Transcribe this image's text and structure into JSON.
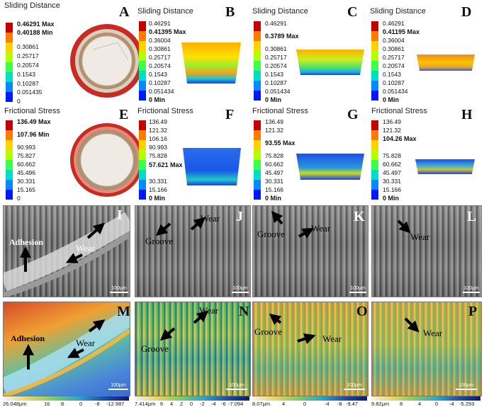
{
  "row1": {
    "title": "Sliding Distance",
    "panels": [
      {
        "letter": "A",
        "ticks": [
          "0.30861",
          "0.25717",
          "0.20574",
          "0.1543",
          "0.10287",
          "0.051435",
          "0"
        ],
        "max": "0.46291 Max",
        "min": "0.40188 Min"
      },
      {
        "letter": "B",
        "ticks": [
          "0.46291",
          "0.36004",
          "0.30861",
          "0.25717",
          "0.20574",
          "0.1543",
          "0.10287",
          "0.051434"
        ],
        "max": "0.41395 Max",
        "min": "0 Min"
      },
      {
        "letter": "C",
        "ticks": [
          "0.46291",
          "0.30861",
          "0.25717",
          "0.20574",
          "0.1543",
          "0.10287",
          "0.051434"
        ],
        "max": "0.3789 Max",
        "min": "0 Min"
      },
      {
        "letter": "D",
        "ticks": [
          "0.46291",
          "0.36004",
          "0.30861",
          "0.25717",
          "0.20574",
          "0.1543",
          "0.10287",
          "0.051434"
        ],
        "max": "0.41195 Max",
        "min": "0 Min"
      }
    ]
  },
  "row2": {
    "title": "Frictional Stress",
    "panels": [
      {
        "letter": "E",
        "ticks": [
          "90.993",
          "75.827",
          "60.662",
          "45.496",
          "30.331",
          "15.165",
          "0"
        ],
        "max": "136.49 Max",
        "min": "107.96 Min"
      },
      {
        "letter": "F",
        "ticks": [
          "136.49",
          "121.32",
          "106.16",
          "90.993",
          "75.828",
          "30.331",
          "15.166"
        ],
        "max": "57.621 Max",
        "min": "0 Min"
      },
      {
        "letter": "G",
        "ticks": [
          "136.49",
          "121.32",
          "75.828",
          "60.662",
          "45.497",
          "30.331",
          "15.166"
        ],
        "max": "93.55 Max",
        "min": "0 Min"
      },
      {
        "letter": "H",
        "ticks": [
          "136.49",
          "121.32",
          "75.828",
          "60.662",
          "45.497",
          "30.331",
          "15.166"
        ],
        "max": "104.26 Max",
        "min": "0 Min"
      }
    ]
  },
  "row3": {
    "panels": [
      {
        "letter": "I",
        "labels": [
          "Adhesion",
          "Wear"
        ]
      },
      {
        "letter": "J",
        "labels": [
          "Groove",
          "Wear"
        ]
      },
      {
        "letter": "K",
        "labels": [
          "Groove",
          "Wear"
        ]
      },
      {
        "letter": "L",
        "labels": [
          "Wear"
        ]
      }
    ],
    "scale": "100μm"
  },
  "row4": {
    "panels": [
      {
        "letter": "M",
        "labels": [
          "Adhesion",
          "Wear"
        ]
      },
      {
        "letter": "N",
        "labels": [
          "Groove",
          "Wear"
        ]
      },
      {
        "letter": "O",
        "labels": [
          "Groove",
          "Wear"
        ]
      },
      {
        "letter": "P",
        "labels": [
          "Wear"
        ]
      }
    ],
    "scale": "100μm"
  },
  "colorbars": [
    {
      "labels": [
        "26.048μm",
        "16",
        "8",
        "0",
        "-8",
        "-12.987"
      ]
    },
    {
      "labels": [
        "7.414μm",
        "6",
        "4",
        "2",
        "0",
        "-2",
        "-4",
        "-6",
        "-7.094"
      ]
    },
    {
      "labels": [
        "8.07μm",
        "4",
        "0",
        "-4",
        "-8",
        "-9.47"
      ]
    },
    {
      "labels": [
        "9.82μm",
        "8",
        "4",
        "0",
        "-4",
        "-5.293"
      ]
    }
  ],
  "colors": {
    "legend": [
      "#c40000",
      "#ff2a00",
      "#ff8c00",
      "#ffd200",
      "#c8ff00",
      "#4cff3a",
      "#00e6a0",
      "#00c8ff",
      "#007cff",
      "#0018ff"
    ],
    "ring_outer": "#c82a24",
    "ring_mid": "#dcd3c4"
  }
}
